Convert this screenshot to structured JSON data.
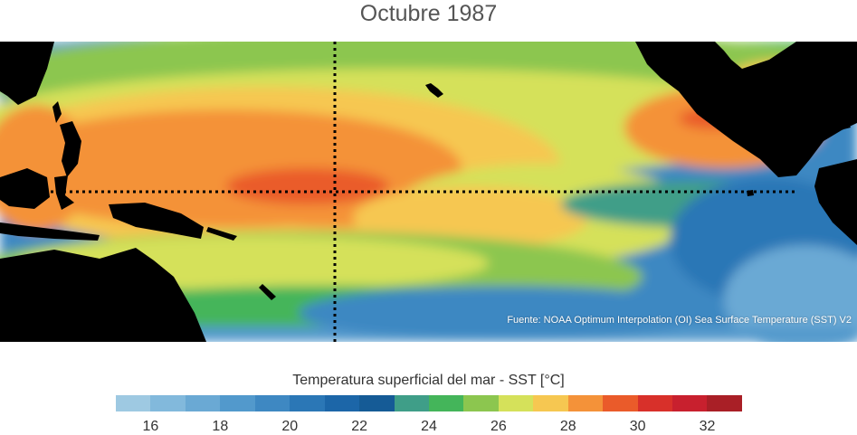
{
  "title": "Octubre 1987",
  "source": "Fuente: NOAA Optimum Interpolation (OI) Sea Surface Temperature (SST) V2",
  "colorbar": {
    "label": "Temperatura superficial del mar - SST  [°C]",
    "min": 15,
    "max": 33,
    "colors": [
      "#9ec9e2",
      "#82b9dc",
      "#6aa9d4",
      "#5299cc",
      "#3e88c2",
      "#2b77b6",
      "#1c66a8",
      "#155b96",
      "#3f9e88",
      "#44b55a",
      "#8cc64f",
      "#d5e15a",
      "#f6c751",
      "#f49239",
      "#ea5b2a",
      "#d8302a",
      "#c8202e",
      "#a91f26"
    ],
    "ticks": [
      16,
      18,
      20,
      22,
      24,
      26,
      28,
      30,
      32
    ]
  }
}
